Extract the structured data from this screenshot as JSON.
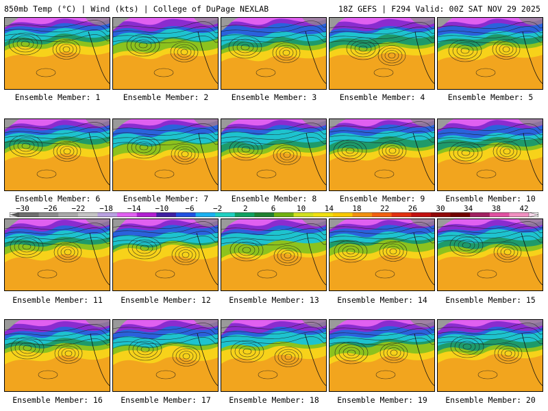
{
  "header": {
    "left": "850mb Temp (°C) | Wind (kts) | College of DuPage NEXLAB",
    "right": "18Z GEFS | F294 Valid: 00Z SAT NOV 29 2025"
  },
  "colorbar": {
    "labels": [
      "−30",
      "−26",
      "−22",
      "−18",
      "−14",
      "−10",
      "−6",
      "−2",
      "2",
      "6",
      "10",
      "14",
      "18",
      "22",
      "26",
      "30",
      "34",
      "38",
      "42"
    ],
    "colors": [
      "#6e6e6e",
      "#8c8c8c",
      "#a8a8a8",
      "#c4c4c4",
      "#b8a0e0",
      "#e060f0",
      "#b020d0",
      "#4020a0",
      "#2050e0",
      "#1ab0f0",
      "#20d0c0",
      "#10a060",
      "#208030",
      "#70b010",
      "#d0e020",
      "#f0e010",
      "#f8c800",
      "#f09010",
      "#f06010",
      "#e03010",
      "#c01010",
      "#900808",
      "#700000",
      "#a02060",
      "#e050a0",
      "#f090c0"
    ]
  },
  "members": [
    {
      "label": "Ensemble Member: 1"
    },
    {
      "label": "Ensemble Member: 2"
    },
    {
      "label": "Ensemble Member: 3"
    },
    {
      "label": "Ensemble Member: 4"
    },
    {
      "label": "Ensemble Member: 5"
    },
    {
      "label": "Ensemble Member: 6"
    },
    {
      "label": "Ensemble Member: 7"
    },
    {
      "label": "Ensemble Member: 8"
    },
    {
      "label": "Ensemble Member: 9"
    },
    {
      "label": "Ensemble Member: 10"
    },
    {
      "label": "Ensemble Member: 11"
    },
    {
      "label": "Ensemble Member: 12"
    },
    {
      "label": "Ensemble Member: 13"
    },
    {
      "label": "Ensemble Member: 14"
    },
    {
      "label": "Ensemble Member: 15"
    },
    {
      "label": "Ensemble Member: 16"
    },
    {
      "label": "Ensemble Member: 17"
    },
    {
      "label": "Ensemble Member: 18"
    },
    {
      "label": "Ensemble Member: 19"
    },
    {
      "label": "Ensemble Member: 20"
    }
  ]
}
